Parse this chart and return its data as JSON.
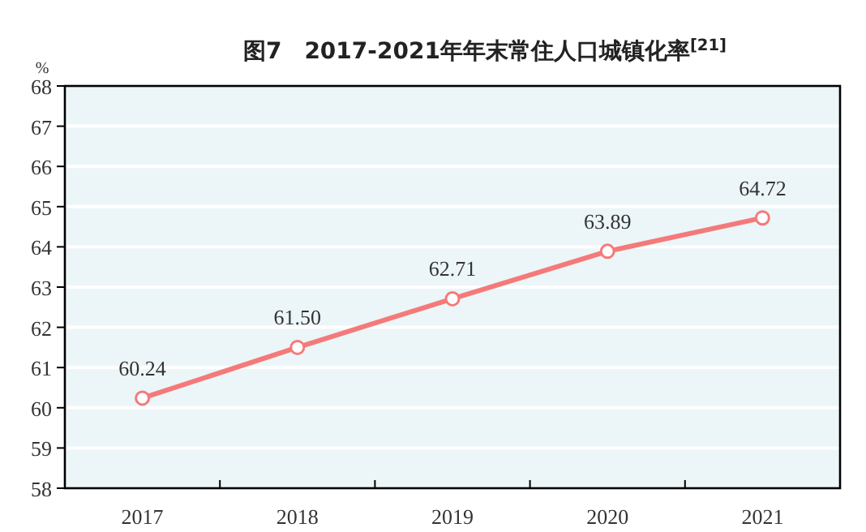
{
  "chart_data": {
    "type": "line",
    "title": "图7　2017-2021年年末常住人口城镇化率$^{[21]}$",
    "ylabel": "%",
    "categories": [
      "2017",
      "2018",
      "2019",
      "2020",
      "2021"
    ],
    "series": [
      {
        "color": "#f47a7a",
        "values": [
          60.24,
          61.5,
          62.71,
          63.89,
          64.72
        ],
        "value_labels": [
          "60.24",
          "61.50",
          "62.71",
          "63.89",
          "64.72"
        ]
      }
    ],
    "ylim": [
      58,
      68
    ],
    "yticks": [
      58,
      59,
      60,
      61,
      62,
      63,
      64,
      65,
      66,
      67,
      68
    ],
    "grid": "y",
    "marker": "circle",
    "line_style": "solid"
  }
}
